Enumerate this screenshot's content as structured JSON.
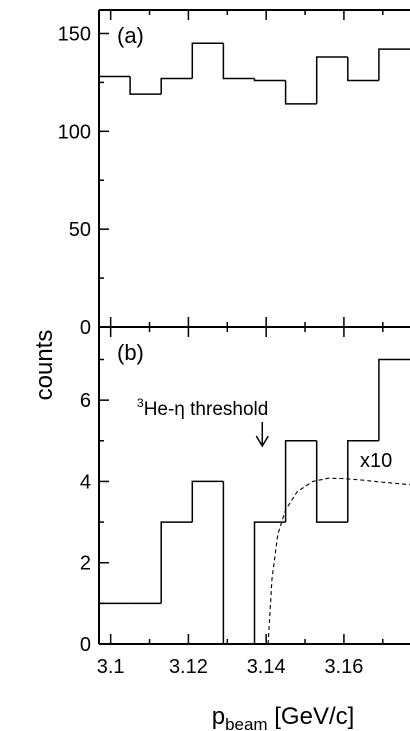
{
  "chart_data": [
    {
      "type": "bar",
      "style": "step-histogram",
      "panel_label": "(a)",
      "bin_edges": [
        3.097,
        3.105,
        3.113,
        3.121,
        3.129,
        3.137,
        3.145,
        3.153,
        3.161,
        3.169,
        3.177
      ],
      "values": [
        128,
        119,
        127,
        145,
        127,
        126,
        114,
        138,
        126,
        142
      ],
      "xlim": [
        3.097,
        3.177
      ],
      "ylim": [
        0,
        162
      ],
      "yticks": [
        0,
        50,
        100,
        150
      ],
      "ytick_labels": [
        "0",
        "50",
        "100",
        "150"
      ]
    },
    {
      "type": "bar",
      "style": "step-histogram",
      "panel_label": "(b)",
      "bin_edges": [
        3.097,
        3.105,
        3.113,
        3.121,
        3.129,
        3.137,
        3.145,
        3.153,
        3.161,
        3.169,
        3.177
      ],
      "values": [
        1,
        1,
        3,
        4,
        0,
        3,
        5,
        3,
        5,
        7
      ],
      "xlim": [
        3.097,
        3.177
      ],
      "ylim": [
        0,
        7.8
      ],
      "yticks": [
        0,
        2,
        4,
        6
      ],
      "ytick_labels": [
        "0",
        "2",
        "4",
        "6"
      ],
      "xticks": [
        3.1,
        3.12,
        3.14,
        3.16
      ],
      "xtick_labels": [
        "3.1",
        "3.12",
        "3.14",
        "3.16"
      ],
      "curve": {
        "style": "dashed",
        "scale_label": "x10",
        "x": [
          3.1405,
          3.1415,
          3.143,
          3.145,
          3.148,
          3.152,
          3.156,
          3.16,
          3.165,
          3.17,
          3.177
        ],
        "y": [
          0,
          1.6,
          2.7,
          3.3,
          3.75,
          4.0,
          4.08,
          4.07,
          4.03,
          3.98,
          3.92
        ]
      },
      "annotation": {
        "superscript": "3",
        "text": "He-η threshold",
        "arrow_x": 3.139
      }
    }
  ],
  "axes": {
    "ylabel": "counts",
    "xlabel_main": "p",
    "xlabel_sub": "beam",
    "xlabel_unit": " [GeV/c]"
  }
}
